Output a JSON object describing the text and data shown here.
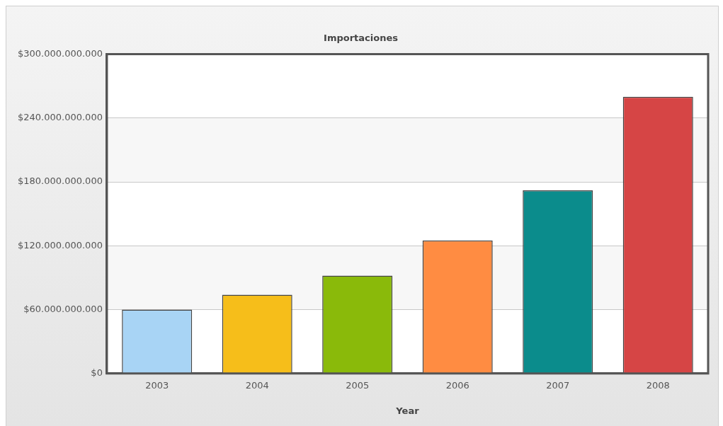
{
  "chart_data": {
    "type": "bar",
    "title": "Importaciones",
    "xlabel": "Year",
    "categories": [
      "2003",
      "2004",
      "2005",
      "2006",
      "2007",
      "2008"
    ],
    "values": [
      60000000000,
      74000000000,
      92000000000,
      125000000000,
      172000000000,
      260000000000
    ],
    "colors": [
      "#a8d4f5",
      "#f6be1a",
      "#8aba0a",
      "#ff8c42",
      "#0b8c8c",
      "#d64545"
    ],
    "ylim": [
      0,
      300000000000
    ],
    "yticks": [
      {
        "value": 0,
        "label": "$0"
      },
      {
        "value": 60000000000,
        "label": "$60.000.000.000"
      },
      {
        "value": 120000000000,
        "label": "$120.000.000.000"
      },
      {
        "value": 180000000000,
        "label": "$180.000.000.000"
      },
      {
        "value": 240000000000,
        "label": "$240.000.000.000"
      },
      {
        "value": 300000000000,
        "label": "$300.000.000.000"
      }
    ],
    "grid": "y",
    "legend": false
  }
}
